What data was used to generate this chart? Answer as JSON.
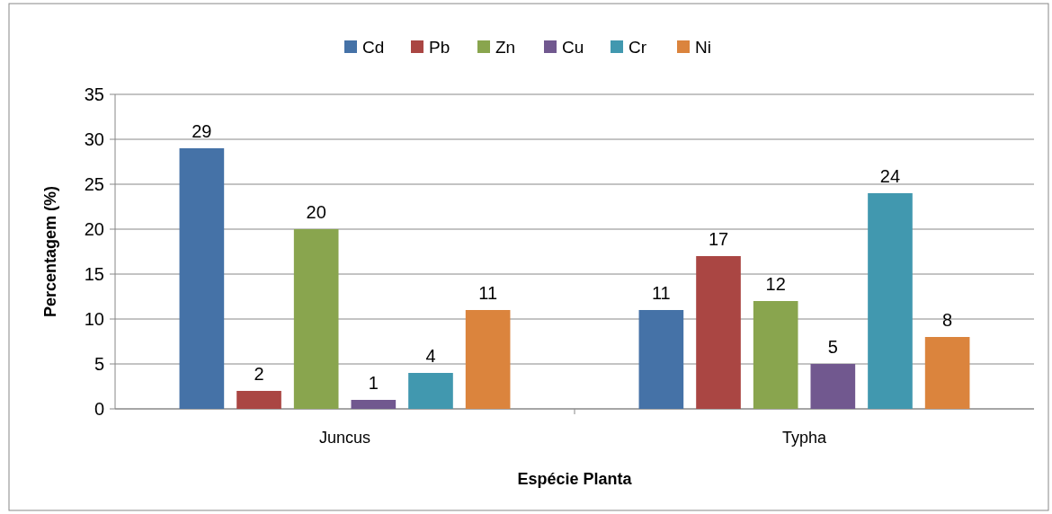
{
  "chart_data": {
    "type": "bar",
    "xlabel": "Espécie Planta",
    "ylabel": "Percentagem (%)",
    "categories": [
      "Juncus",
      "Typha"
    ],
    "series": [
      {
        "name": "Cd",
        "color": "#4572a7",
        "values": [
          29,
          11
        ]
      },
      {
        "name": "Pb",
        "color": "#aa4643",
        "values": [
          2,
          17
        ]
      },
      {
        "name": "Zn",
        "color": "#89a54e",
        "values": [
          20,
          12
        ]
      },
      {
        "name": "Cu",
        "color": "#71588f",
        "values": [
          1,
          5
        ]
      },
      {
        "name": "Cr",
        "color": "#4198af",
        "values": [
          4,
          24
        ]
      },
      {
        "name": "Ni",
        "color": "#db843d",
        "values": [
          11,
          8
        ]
      }
    ],
    "ylim": [
      0,
      35
    ],
    "yticks": [
      0,
      5,
      10,
      15,
      20,
      25,
      30,
      35
    ],
    "grid": "y",
    "legend": "top",
    "data_labels": true
  }
}
